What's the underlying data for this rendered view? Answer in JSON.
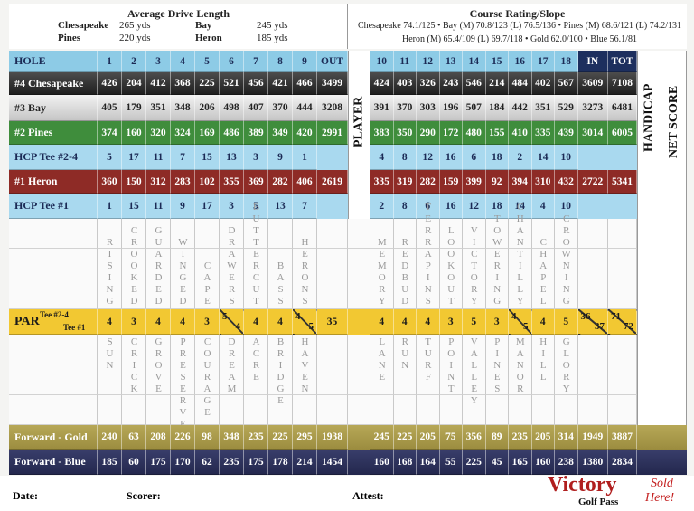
{
  "drive_length": {
    "title": "Average Drive Length",
    "entries": [
      {
        "tee": "Chesapeake",
        "yards": "265 yds"
      },
      {
        "tee": "Bay",
        "yards": "245 yds"
      },
      {
        "tee": "Pines",
        "yards": "220 yds"
      },
      {
        "tee": "Heron",
        "yards": "185 yds"
      }
    ]
  },
  "course_rating": {
    "title": "Course Rating/Slope",
    "lines": [
      "Chesapeake 74.1/125 • Bay (M) 70.8/123 (L) 76.5/136 • Pines (M) 68.6/121 (L) 74.2/131",
      "Heron (M) 65.4/109 (L) 69.7/118 • Gold 62.0/100 • Blue 56.1/81"
    ]
  },
  "side_headers": {
    "player": "PLAYER",
    "handicap": "HANDICAP",
    "net_score": "NET SCORE"
  },
  "table": {
    "rows_top": [
      {
        "label": "HOLE",
        "front": [
          1,
          2,
          3,
          4,
          5,
          6,
          7,
          8,
          9,
          "OUT"
        ],
        "back": [
          10,
          11,
          12,
          13,
          14,
          15,
          16,
          17,
          18,
          "IN",
          "TOT"
        ]
      },
      {
        "label": "#4 Chesapeake",
        "front": [
          426,
          204,
          412,
          368,
          225,
          521,
          456,
          421,
          466,
          3499
        ],
        "back": [
          424,
          403,
          326,
          243,
          546,
          214,
          484,
          402,
          567,
          3609,
          7108
        ]
      },
      {
        "label": "#3 Bay",
        "front": [
          405,
          179,
          351,
          348,
          206,
          498,
          407,
          370,
          444,
          3208
        ],
        "back": [
          391,
          370,
          303,
          196,
          507,
          184,
          442,
          351,
          529,
          3273,
          6481
        ]
      },
      {
        "label": "#2 Pines",
        "front": [
          374,
          160,
          320,
          324,
          169,
          486,
          389,
          349,
          420,
          2991
        ],
        "back": [
          383,
          350,
          290,
          172,
          480,
          155,
          410,
          335,
          439,
          3014,
          6005
        ]
      },
      {
        "label": "HCP Tee #2-4",
        "front": [
          5,
          17,
          11,
          7,
          15,
          13,
          3,
          9,
          1
        ],
        "back": [
          4,
          8,
          12,
          16,
          6,
          18,
          2,
          14,
          10
        ]
      },
      {
        "label": "#1 Heron",
        "front": [
          360,
          150,
          312,
          283,
          102,
          355,
          369,
          282,
          406,
          2619
        ],
        "back": [
          335,
          319,
          282,
          159,
          399,
          92,
          394,
          310,
          432,
          2722,
          5341
        ]
      },
      {
        "label": "HCP Tee #1",
        "front": [
          1,
          15,
          11,
          9,
          17,
          3,
          5,
          13,
          7
        ],
        "back": [
          2,
          8,
          6,
          16,
          12,
          18,
          14,
          4,
          10
        ]
      }
    ],
    "hole_names_upper": {
      "front": [
        "RISING",
        "CROOKED",
        "GUARDED",
        "WINGED",
        "CAPE",
        "DRAWERS",
        "BUTTERCUT",
        "BASS",
        "HERONS"
      ],
      "back": [
        "MEMORY",
        "REDBUD",
        "TERRAPINS",
        "LOOKOUT",
        "VICTORY",
        "TOWERING",
        "CHANTILLY",
        "CHAPEL",
        "CROWNING"
      ]
    },
    "par": {
      "label": "PAR",
      "tees": [
        "Tee #2-4",
        "Tee #1"
      ],
      "front": [
        4,
        3,
        4,
        4,
        3,
        {
          "top": 5,
          "bottom": 4
        },
        4,
        4,
        {
          "top": 4,
          "bottom": 5
        },
        35
      ],
      "back": [
        4,
        4,
        4,
        3,
        5,
        3,
        {
          "top": 4,
          "bottom": 5
        },
        4,
        5,
        {
          "top": 36,
          "bottom": 37
        },
        {
          "top": 71,
          "bottom": 72
        }
      ]
    },
    "hole_names_lower": {
      "front": [
        "SUN",
        "CRICK",
        "GROVE",
        "PRESERVE",
        "COURAGE",
        "DREAM",
        "ACRE",
        "BRIDGE",
        "HAVEN"
      ],
      "back": [
        "LANE",
        "RUN",
        "TURF",
        "POINT",
        "VALLEY",
        "PINES",
        "MANOR",
        "HILL",
        "GLORY"
      ]
    },
    "rows_bottom": [
      {
        "label": "Forward - Gold",
        "front": [
          240,
          63,
          208,
          226,
          98,
          348,
          235,
          225,
          295,
          1938
        ],
        "back": [
          245,
          225,
          205,
          75,
          356,
          89,
          235,
          205,
          314,
          1949,
          3887
        ]
      },
      {
        "label": "Forward - Blue",
        "front": [
          185,
          60,
          175,
          170,
          62,
          235,
          175,
          178,
          214,
          1454
        ],
        "back": [
          160,
          168,
          164,
          55,
          225,
          45,
          165,
          160,
          238,
          1380,
          2834
        ]
      }
    ]
  },
  "footer": {
    "date": "Date:",
    "scorer": "Scorer:",
    "attest": "Attest:",
    "logo": "Victory",
    "logo_sub": "Golf Pass",
    "sold": "Sold",
    "here": "Here!"
  }
}
